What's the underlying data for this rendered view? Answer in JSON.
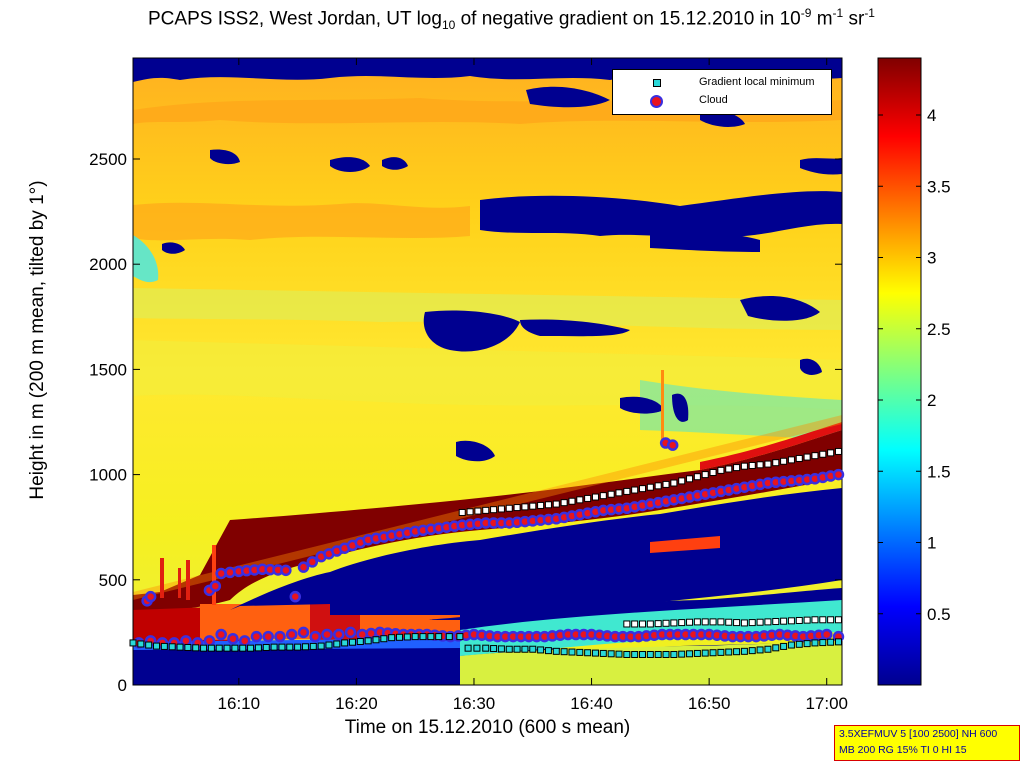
{
  "chart_data": {
    "type": "heatmap",
    "title": "PCAPS ISS2, West Jordan, UT log",
    "title_parts": {
      "main": "PCAPS ISS2, West Jordan, UT log",
      "sub": "10",
      "mid": " of negative gradient on 15.12.2010 in 10",
      "exp1": "-9",
      "mid2": " m",
      "exp2": "-1",
      "mid3": " sr",
      "exp3": "-1"
    },
    "xlabel": "Time on 15.12.2010 (600 s mean)",
    "ylabel": "Height in m (200 m mean, tilted by 1°)",
    "x_ticks": [
      "16:10",
      "16:20",
      "16:30",
      "16:40",
      "16:50",
      "17:00"
    ],
    "y_ticks": [
      0,
      500,
      1000,
      1500,
      2000,
      2500
    ],
    "ylim": [
      0,
      2980
    ],
    "xlim_minutes": [
      1,
      61.3
    ],
    "colorbar": {
      "ticks": [
        0.5,
        1,
        1.5,
        2,
        2.5,
        3,
        3.5,
        4
      ],
      "range": [
        0,
        4.4
      ],
      "colormap": "jet"
    },
    "legend": {
      "placement": "top-right",
      "entries": [
        "Gradient local minimum",
        "Cloud"
      ]
    },
    "series": [
      {
        "name": "Cloud",
        "marker": "circle",
        "color": "#e8141e",
        "edge": "#3a2fe0",
        "x_minutes": [
          1.5,
          2.5,
          3.5,
          4.5,
          5.5,
          6.5,
          7.5,
          8.5,
          9.5,
          10.5,
          11.5,
          12.5,
          13.5,
          14.5,
          15.5,
          16.5,
          17.5,
          18.5,
          19.5,
          20.5,
          22,
          24,
          26,
          28,
          30,
          32,
          34,
          36,
          38,
          40,
          42,
          44,
          46,
          48,
          50,
          52,
          54,
          56,
          58,
          60,
          61
        ],
        "y_m": [
          200,
          210,
          200,
          200,
          210,
          200,
          210,
          240,
          220,
          210,
          230,
          230,
          230,
          240,
          250,
          230,
          240,
          240,
          250,
          240,
          250,
          240,
          240,
          230,
          240,
          230,
          230,
          230,
          240,
          240,
          230,
          230,
          240,
          240,
          240,
          230,
          230,
          240,
          230,
          240,
          230
        ]
      },
      {
        "name": "Cloud (upper)",
        "marker": "circle",
        "x_minutes": [
          2.2,
          2.5,
          7.5,
          8.0,
          8.5,
          10,
          12,
          14,
          14.8,
          15.5,
          17,
          19,
          21,
          23,
          25,
          27,
          29,
          31,
          33,
          35,
          37,
          39,
          41,
          43,
          45,
          47,
          49,
          51,
          53,
          55,
          57,
          59,
          61
        ],
        "y_m": [
          400,
          420,
          450,
          470,
          530,
          540,
          550,
          545,
          420,
          560,
          610,
          650,
          690,
          710,
          730,
          745,
          760,
          770,
          770,
          780,
          790,
          810,
          830,
          840,
          860,
          880,
          900,
          920,
          940,
          960,
          970,
          980,
          1000
        ]
      },
      {
        "name": "Cloud (isolated)",
        "marker": "circle",
        "x_minutes": [
          46.3,
          46.9
        ],
        "y_m": [
          1150,
          1140
        ]
      },
      {
        "name": "Gradient local minimum",
        "marker": "square",
        "color": "#2ad9d9",
        "x_minutes": [
          1,
          3,
          5,
          7,
          9,
          11,
          13,
          15,
          17,
          19,
          21,
          23,
          25,
          27,
          28.8,
          29.5,
          31,
          33,
          35,
          37,
          39,
          41,
          43,
          45,
          47,
          49,
          51,
          53,
          55,
          57,
          59,
          61
        ],
        "y_m": [
          200,
          185,
          180,
          175,
          175,
          175,
          180,
          180,
          185,
          200,
          210,
          225,
          230,
          230,
          230,
          175,
          175,
          170,
          170,
          160,
          155,
          150,
          145,
          145,
          145,
          150,
          155,
          160,
          170,
          190,
          200,
          205
        ]
      },
      {
        "name": "Gradient local minimum (upper)",
        "marker": "square",
        "x_minutes": [
          29,
          31,
          33,
          35,
          37,
          39,
          41,
          43,
          45,
          47,
          49,
          51,
          53,
          55,
          57,
          59,
          61
        ],
        "y_m": [
          820,
          830,
          840,
          850,
          860,
          880,
          900,
          920,
          940,
          960,
          990,
          1020,
          1040,
          1050,
          1070,
          1090,
          1110
        ]
      },
      {
        "name": "Gradient local minimum (low white)",
        "marker": "square",
        "x_minutes": [
          43,
          45,
          47,
          49,
          51,
          53,
          55,
          57,
          59,
          61
        ],
        "y_m": [
          290,
          290,
          295,
          300,
          300,
          295,
          300,
          305,
          310,
          310
        ]
      }
    ]
  },
  "info_box": {
    "line1": "3.5XEFMUV 5 [100 2500] NH 600",
    "line2": "MB 200 RG 15% TI 0 HI 15"
  }
}
